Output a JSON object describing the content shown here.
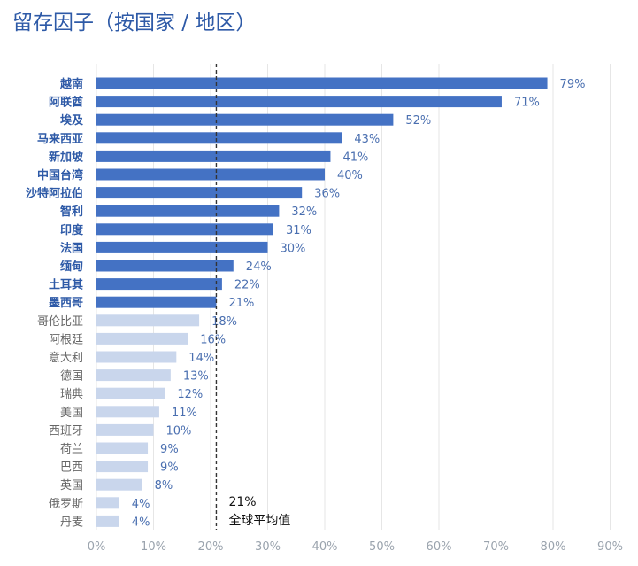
{
  "chart_data": {
    "type": "bar",
    "orientation": "horizontal",
    "title": "留存因子（按国家 / 地区）",
    "categories": [
      "越南",
      "阿联酋",
      "埃及",
      "马来西亚",
      "新加坡",
      "中国台湾",
      "沙特阿拉伯",
      "智利",
      "印度",
      "法国",
      "缅甸",
      "土耳其",
      "墨西哥",
      "哥伦比亚",
      "阿根廷",
      "意大利",
      "德国",
      "瑞典",
      "美国",
      "西班牙",
      "荷兰",
      "巴西",
      "英国",
      "俄罗斯",
      "丹麦"
    ],
    "values": [
      79,
      71,
      52,
      43,
      41,
      40,
      36,
      32,
      31,
      30,
      24,
      22,
      21,
      18,
      16,
      14,
      13,
      12,
      11,
      10,
      9,
      9,
      8,
      4,
      4
    ],
    "value_labels": [
      "79%",
      "71%",
      "52%",
      "43%",
      "41%",
      "40%",
      "36%",
      "32%",
      "31%",
      "30%",
      "24%",
      "22%",
      "21%",
      "18%",
      "16%",
      "14%",
      "13%",
      "12%",
      "11%",
      "10%",
      "9%",
      "9%",
      "8%",
      "4%",
      "4%"
    ],
    "xlim": [
      0,
      90
    ],
    "xticks": [
      0,
      10,
      20,
      30,
      40,
      50,
      60,
      70,
      80,
      90
    ],
    "xtick_labels": [
      "0%",
      "10%",
      "20%",
      "30%",
      "40%",
      "50%",
      "60%",
      "70%",
      "80%",
      "90%"
    ],
    "grid": "vertical",
    "reference_line": {
      "value": 21,
      "style": "dashed",
      "label_value": "21%",
      "label_text": "全球平均值"
    },
    "colors": {
      "above_average": "#4472c4",
      "below_average": "#c9d6ec",
      "above_label": "#2e5aa7",
      "below_label": "#666666",
      "value_label": "#4a6fb0",
      "grid": "#e6e6e6",
      "reference_line": "#333333"
    }
  }
}
